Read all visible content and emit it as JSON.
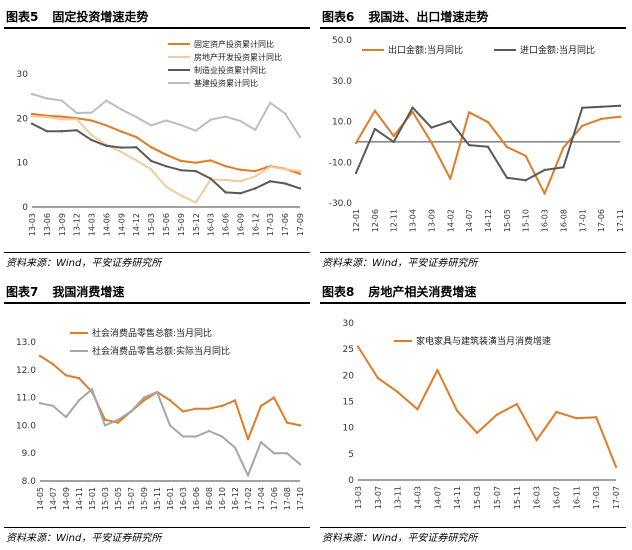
{
  "source_text": "资料来源：Wind，平安证券研究所",
  "panels": [
    {
      "fig": "图表5",
      "title": "固定投资增速走势"
    },
    {
      "fig": "图表6",
      "title": "我国进、出口增速走势"
    },
    {
      "fig": "图表7",
      "title": "我国消费增速"
    },
    {
      "fig": "图表8",
      "title": "房地产相关消费增速"
    }
  ],
  "chart_data": [
    {
      "type": "line",
      "yticks": [
        "0",
        "10",
        "20",
        "30"
      ],
      "ylim": [
        0,
        30
      ],
      "categories": [
        "13-03",
        "13-06",
        "13-09",
        "13-12",
        "14-03",
        "14-06",
        "14-09",
        "14-12",
        "15-03",
        "15-06",
        "15-09",
        "15-12",
        "16-03",
        "16-06",
        "16-09",
        "16-12",
        "17-03",
        "17-06",
        "17-09"
      ],
      "series": [
        {
          "name": "固定资产投资累计同比",
          "color": "#e07b26",
          "values": [
            21.0,
            20.6,
            20.4,
            20.0,
            19.5,
            18.4,
            17.0,
            15.8,
            13.5,
            11.8,
            10.4,
            10.0,
            10.5,
            9.2,
            8.4,
            8.1,
            9.2,
            8.6,
            7.5
          ]
        },
        {
          "name": "房地产开发投资累计同比",
          "color": "#f3c99d",
          "values": [
            20.5,
            20.3,
            19.8,
            19.8,
            16.2,
            14.0,
            12.4,
            10.5,
            8.5,
            4.6,
            2.6,
            1.0,
            6.2,
            6.1,
            5.8,
            6.9,
            9.1,
            8.5,
            8.1
          ]
        },
        {
          "name": "制造业投资累计同比",
          "color": "#595959",
          "values": [
            18.8,
            17.1,
            17.1,
            17.3,
            15.1,
            13.8,
            13.4,
            13.5,
            10.4,
            9.2,
            8.3,
            8.1,
            6.4,
            3.3,
            3.1,
            4.2,
            5.8,
            5.3,
            4.2
          ]
        },
        {
          "name": "基建投资累计同比",
          "color": "#bdbdbd",
          "values": [
            25.5,
            24.5,
            24.0,
            21.2,
            21.3,
            24.0,
            22.0,
            20.3,
            18.4,
            19.5,
            18.5,
            17.2,
            19.7,
            20.4,
            19.4,
            17.4,
            23.5,
            21.1,
            15.8
          ]
        }
      ]
    },
    {
      "type": "line",
      "yticks": [
        "-30.0",
        "-10.0",
        "10.0",
        "30.0",
        "50.0"
      ],
      "ylim": [
        -30,
        50
      ],
      "categories": [
        "12-01",
        "12-06",
        "12-11",
        "13-04",
        "13-09",
        "14-02",
        "14-07",
        "14-12",
        "15-05",
        "15-10",
        "16-03",
        "16-08",
        "17-01",
        "17-06",
        "17-11"
      ],
      "series": [
        {
          "name": "出口金额:当月同比",
          "color": "#e07b26",
          "values": [
            -0.5,
            15.3,
            2.9,
            14.7,
            -0.3,
            -18.1,
            14.5,
            9.7,
            -2.5,
            -6.9,
            -25.4,
            -2.8,
            7.9,
            11.3,
            12.3
          ]
        },
        {
          "name": "进口金额:当月同比",
          "color": "#595959",
          "values": [
            -15.3,
            6.3,
            0.0,
            16.8,
            7.0,
            10.1,
            -1.6,
            -2.4,
            -17.6,
            -18.8,
            -13.8,
            -12.5,
            16.7,
            17.2,
            17.7
          ]
        }
      ]
    },
    {
      "type": "line",
      "yticks": [
        "8.0",
        "9.0",
        "10.0",
        "11.0",
        "12.0",
        "13.0"
      ],
      "ylim": [
        8,
        13
      ],
      "categories": [
        "14-05",
        "14-07",
        "14-09",
        "14-11",
        "15-01",
        "15-03",
        "15-05",
        "15-07",
        "15-09",
        "15-11",
        "16-01",
        "16-03",
        "16-06",
        "16-08",
        "16-10",
        "16-12",
        "17-02",
        "17-04",
        "17-06",
        "17-08",
        "17-10"
      ],
      "series": [
        {
          "name": "社会消费品零售总额:当月同比",
          "color": "#e07b26",
          "values": [
            12.5,
            12.2,
            11.8,
            11.7,
            11.2,
            10.2,
            10.1,
            10.5,
            10.9,
            11.2,
            10.9,
            10.5,
            10.6,
            10.6,
            10.7,
            10.9,
            9.5,
            10.7,
            11.0,
            10.1,
            10.0
          ]
        },
        {
          "name": "社会消费品零售总额:实际当月同比",
          "color": "#a6a6a6",
          "values": [
            10.8,
            10.7,
            10.3,
            10.9,
            11.3,
            10.0,
            10.2,
            10.5,
            11.0,
            11.2,
            10.0,
            9.6,
            9.6,
            9.8,
            9.6,
            9.2,
            8.2,
            9.4,
            9.0,
            9.0,
            8.6
          ]
        }
      ]
    },
    {
      "type": "line",
      "yticks": [
        "0",
        "5",
        "10",
        "15",
        "20",
        "25",
        "30"
      ],
      "ylim": [
        0,
        30
      ],
      "categories": [
        "13-03",
        "13-07",
        "13-11",
        "14-03",
        "14-07",
        "14-11",
        "15-03",
        "15-07",
        "15-11",
        "16-03",
        "16-07",
        "16-11",
        "17-03",
        "17-07"
      ],
      "series": [
        {
          "name": "家电家具与建筑装潢当月消费增速",
          "color": "#e07b26",
          "values": [
            25.5,
            19.5,
            16.8,
            13.5,
            21.0,
            13.2,
            9.0,
            12.5,
            14.5,
            7.6,
            13.0,
            11.8,
            12.0,
            2.5
          ]
        }
      ]
    }
  ]
}
